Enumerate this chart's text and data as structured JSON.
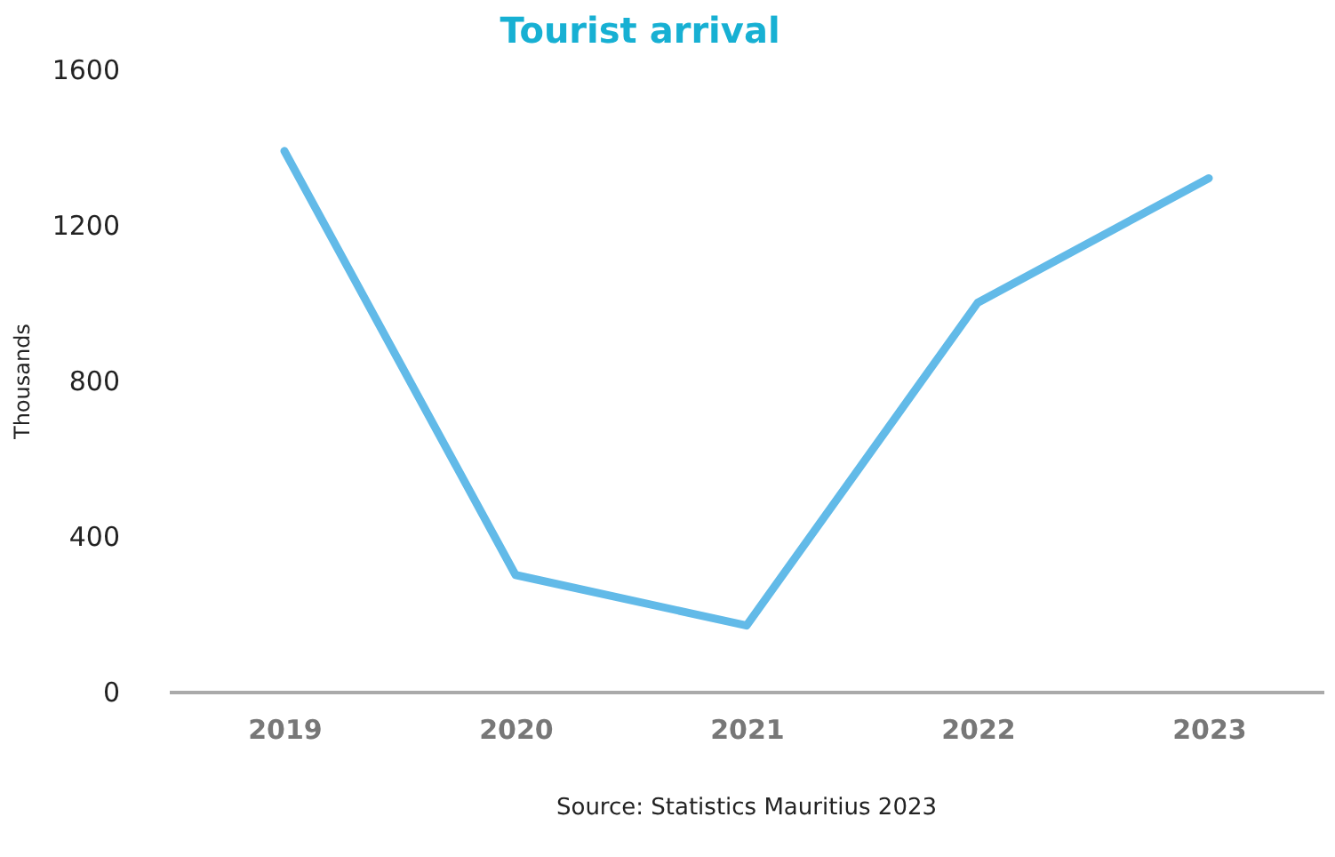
{
  "chart_data": {
    "type": "line",
    "title": "Tourist arrival",
    "ylabel": "Thousands",
    "categories": [
      "2019",
      "2020",
      "2021",
      "2022",
      "2023"
    ],
    "series": [
      {
        "color": "#62bae8",
        "values": [
          1390,
          300,
          170,
          1000,
          1320
        ]
      }
    ],
    "ylim": [
      0,
      1600
    ],
    "yticks": [
      0,
      400,
      800,
      1200,
      1600
    ],
    "grid": false,
    "legend": false,
    "marker": "none",
    "line_style": "solid",
    "annotations": [
      "Source: Statistics Mauritius 2023"
    ]
  }
}
